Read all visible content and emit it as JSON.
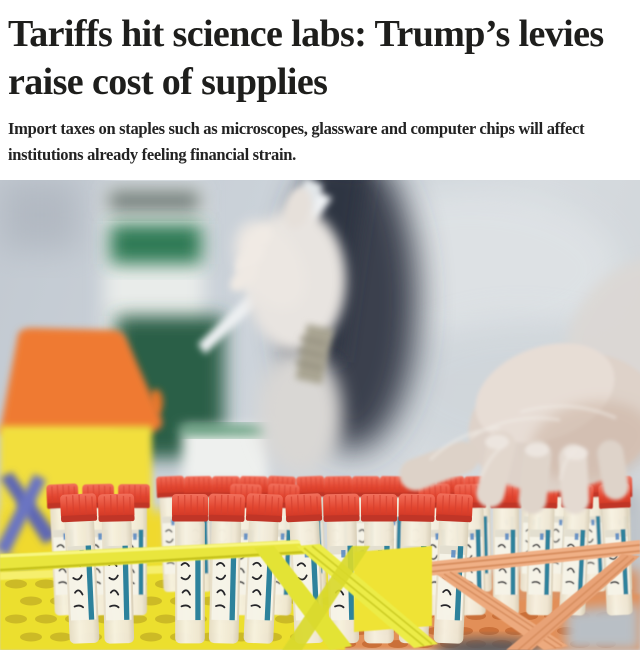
{
  "article": {
    "headline": "Tariffs hit science labs: Trump’s levies raise cost of supplies",
    "standfirst": "Import taxes on staples such as microscopes, glassware and computer chips will affect institutions already feeling financial strain.",
    "photo_alt": "A gloved hand picks a red-capped sample tube from a yellow rack of tubes while a blurred researcher pipettes in a laboratory background."
  },
  "colors": {
    "headline_text": "#1e1e1c",
    "standfirst_text": "#232323",
    "photo_background": "#ccd3da",
    "tube_cap_red": "#e2452f",
    "tube_label_teal": "#2d829c",
    "rack_yellow": "#ece23a",
    "rack_orange": "#eca172",
    "sharps_lid_orange": "#ef7a33",
    "sharps_body_yellow": "#f2df3d"
  }
}
